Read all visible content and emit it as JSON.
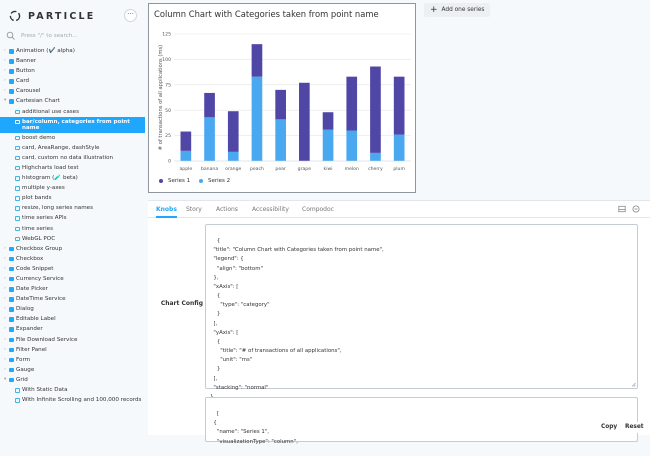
{
  "brand": {
    "name": "PARTICLE",
    "menu_label": "···"
  },
  "search": {
    "placeholder": "Press \"/\" to search..."
  },
  "tree": [
    {
      "label": "Animation (✔️ alpha)",
      "level": 0,
      "arrow": ">"
    },
    {
      "label": "Banner",
      "level": 0,
      "arrow": ">"
    },
    {
      "label": "Button",
      "level": 0,
      "arrow": ">"
    },
    {
      "label": "Card",
      "level": 0,
      "arrow": ">"
    },
    {
      "label": "Carousel",
      "level": 0,
      "arrow": ">"
    },
    {
      "label": "Cartesian Chart",
      "level": 0,
      "arrow": "v"
    },
    {
      "label": "additional use cases",
      "level": 1
    },
    {
      "label": "bar/column, categories from point name",
      "level": 1,
      "selected": true
    },
    {
      "label": "boost demo",
      "level": 1
    },
    {
      "label": "card, AreaRange, dashStyle",
      "level": 1
    },
    {
      "label": "card, custom no data illustration",
      "level": 1
    },
    {
      "label": "Highcharts load test",
      "level": 1
    },
    {
      "label": "histogram (🧪 beta)",
      "level": 1
    },
    {
      "label": "multiple y-axes",
      "level": 1
    },
    {
      "label": "plot bands",
      "level": 1
    },
    {
      "label": "resize, long series names",
      "level": 1
    },
    {
      "label": "time series APIs",
      "level": 1
    },
    {
      "label": "time series",
      "level": 1
    },
    {
      "label": "WebGL POC",
      "level": 1
    },
    {
      "label": "Checkbox Group",
      "level": 0,
      "arrow": ">"
    },
    {
      "label": "Checkbox",
      "level": 0,
      "arrow": ">"
    },
    {
      "label": "Code Snippet",
      "level": 0,
      "arrow": ">"
    },
    {
      "label": "Currency Service",
      "level": 0,
      "arrow": ">"
    },
    {
      "label": "Date Picker",
      "level": 0,
      "arrow": ">"
    },
    {
      "label": "DateTime Service",
      "level": 0,
      "arrow": ">"
    },
    {
      "label": "Dialog",
      "level": 0,
      "arrow": ">"
    },
    {
      "label": "Editable Label",
      "level": 0,
      "arrow": ">"
    },
    {
      "label": "Expander",
      "level": 0,
      "arrow": ">"
    },
    {
      "label": "File Download Service",
      "level": 0,
      "arrow": ">"
    },
    {
      "label": "Filter Panel",
      "level": 0,
      "arrow": ">"
    },
    {
      "label": "Form",
      "level": 0,
      "arrow": ">"
    },
    {
      "label": "Gauge",
      "level": 0,
      "arrow": ">"
    },
    {
      "label": "Grid",
      "level": 0,
      "arrow": "v"
    },
    {
      "label": "With Static Data",
      "level": 1
    },
    {
      "label": "With Infinite Scrolling and 100,000 records",
      "level": 1
    }
  ],
  "toolbar": {
    "add_series_label": "Add one series"
  },
  "chart_data": {
    "type": "bar",
    "stacking": "normal",
    "title": "Column Chart with Categories taken from point name",
    "xlabel": "",
    "ylabel": "# of transactions of all applications (ms)",
    "categories": [
      "apple",
      "banana",
      "orange",
      "peach",
      "pear",
      "grape",
      "kiwi",
      "melon",
      "cherry",
      "plum"
    ],
    "series": [
      {
        "name": "Series 1",
        "color": "#5046a6",
        "values": [
          19,
          24,
          40,
          32,
          29,
          77,
          17,
          53,
          85,
          57
        ]
      },
      {
        "name": "Series 2",
        "color": "#4aa8f0",
        "values": [
          10,
          43,
          9,
          83,
          41,
          0,
          31,
          30,
          8,
          26
        ]
      }
    ],
    "ylim": [
      0,
      125
    ],
    "yticks": [
      "0",
      "25",
      "50",
      "75",
      "100",
      "125"
    ],
    "legend_position": "bottom",
    "grid": true
  },
  "panel": {
    "tabs": [
      "Knobs",
      "Story",
      "Actions",
      "Accessibility",
      "Compodoc"
    ],
    "active_tab": "Knobs",
    "chart_config_label": "Chart Config",
    "chart_config": "{\n  \"title\": \"Column Chart with Categories taken from point name\",\n  \"legend\": {\n    \"align\": \"bottom\"\n  },\n  \"xAxis\": [\n    {\n      \"type\": \"category\"\n    }\n  ],\n  \"yAxis\": [\n    {\n      \"title\": \"# of transactions of all applications\",\n      \"unit\": \"ms\"\n    }\n  ],\n  \"stacking\": \"normal\"\n}",
    "series_config": "[\n  {\n    \"name\": \"Series 1\",\n    \"visualizationType\": \"column\",",
    "copy_label": "Copy",
    "reset_label": "Reset"
  }
}
